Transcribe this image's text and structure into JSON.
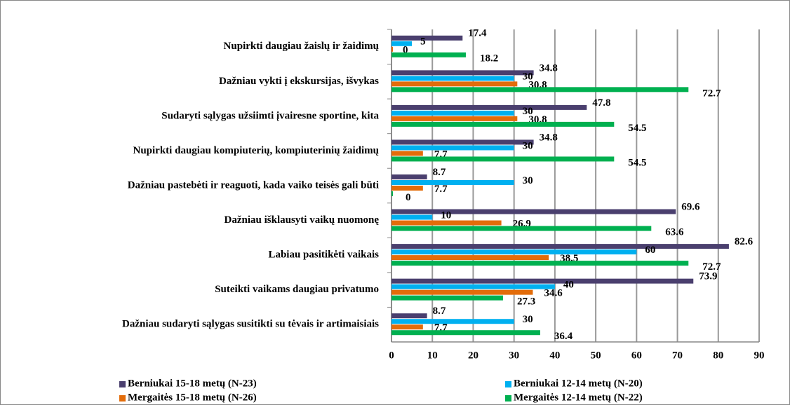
{
  "chart_data": {
    "type": "hbar",
    "categories": [
      "Nupirkti daugiau žaislų ir žaidimų",
      "Dažniau vykti į ekskursijas, išvykas",
      "Sudaryti sąlygas užsiimti įvairesne sportine, kita",
      "Nupirkti daugiau kompiuterių, kompiuterinių žaidimų",
      "Dažniau pastebėti ir reaguoti, kada vaiko teisės gali būti",
      "Dažniau išklausyti vaikų nuomonę",
      "Labiau pasitikėti vaikais",
      "Suteikti vaikams daugiau privatumo",
      "Dažniau sudaryti sąlygas susitikti su tėvais ir artimaisiais"
    ],
    "series": [
      {
        "name": "Berniukai 15-18 metų (N-23)",
        "color": "#4a3f6e",
        "values": [
          17.4,
          34.8,
          47.8,
          34.8,
          8.7,
          69.6,
          82.6,
          73.9,
          8.7
        ]
      },
      {
        "name": "Berniukai 12-14 metų (N-20)",
        "color": "#00b0f0",
        "values": [
          5,
          30,
          30,
          30,
          30,
          10,
          60,
          40,
          30
        ]
      },
      {
        "name": "Mergaitės 15-18 metų (N-26)",
        "color": "#e36c0a",
        "values": [
          0,
          30.8,
          30.8,
          7.7,
          7.7,
          26.9,
          38.5,
          34.6,
          7.7
        ]
      },
      {
        "name": "Mergaitės 12-14 metų (N-22)",
        "color": "#00b050",
        "values": [
          18.2,
          72.7,
          54.5,
          54.5,
          0,
          63.6,
          72.7,
          27.3,
          36.4
        ]
      }
    ],
    "xlim": [
      0,
      90
    ],
    "xticks": [
      0,
      10,
      20,
      30,
      40,
      50,
      60,
      70,
      80,
      90
    ],
    "grid": true
  }
}
